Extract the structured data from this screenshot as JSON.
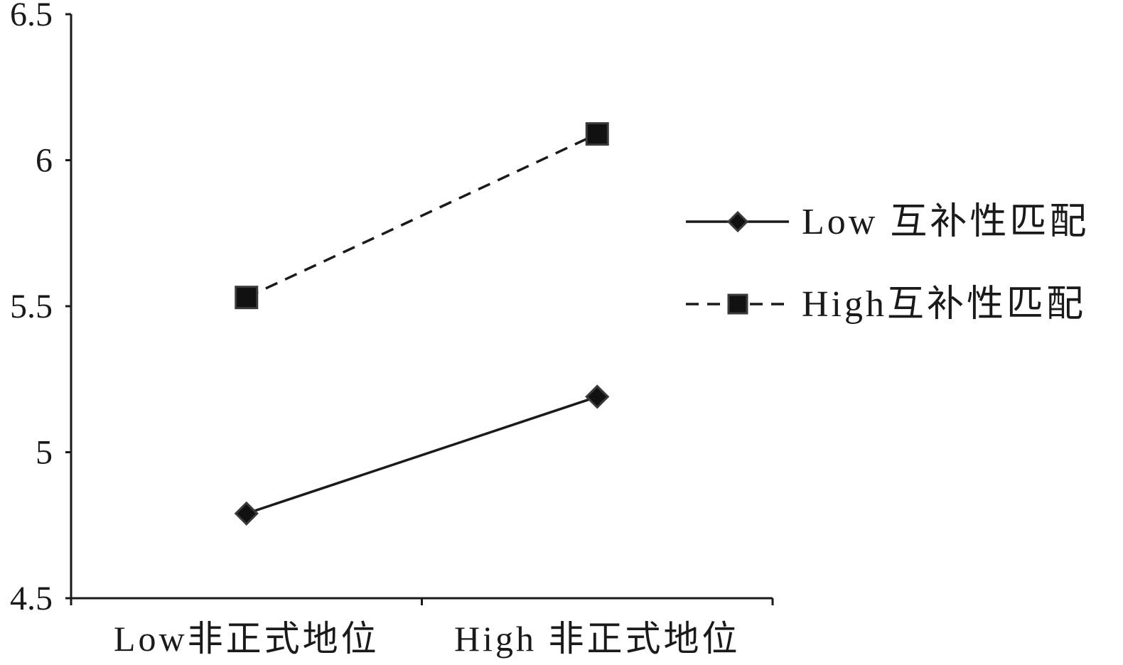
{
  "chart_data": {
    "type": "line",
    "categories": [
      "Low非正式地位",
      "High 非正式地位"
    ],
    "ylim": [
      4.5,
      6.5
    ],
    "yticks": [
      4.5,
      5,
      5.5,
      6,
      6.5
    ],
    "ytick_labels": [
      "4.5",
      "5",
      "5.5",
      "6",
      "6.5"
    ],
    "grid": false,
    "legend_position": "right",
    "series": [
      {
        "name": "Low 互补性匹配",
        "values": [
          4.79,
          5.19
        ],
        "line_style": "solid",
        "marker": "diamond",
        "color": "#1a1a1a"
      },
      {
        "name": "High互补性匹配",
        "values": [
          5.53,
          6.09
        ],
        "line_style": "dashed",
        "marker": "square",
        "color": "#1a1a1a"
      }
    ]
  }
}
